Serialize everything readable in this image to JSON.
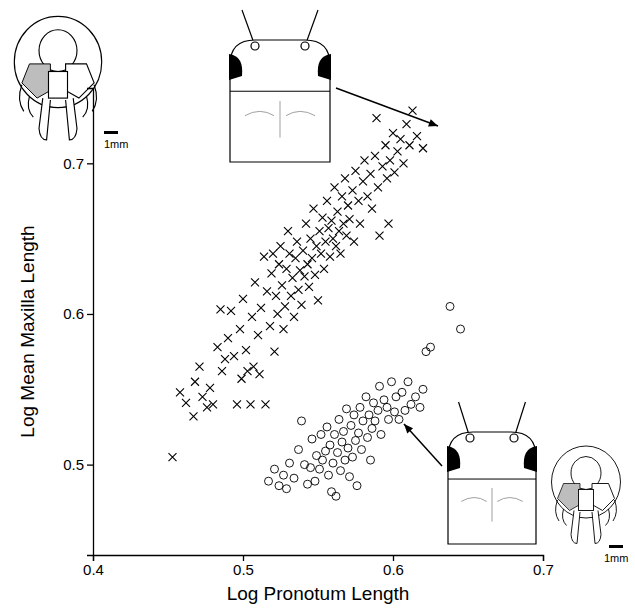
{
  "chart_data": {
    "type": "scatter",
    "xlabel": "Log Pronotum Length",
    "ylabel": "Log Mean Maxilla Length",
    "xlim": [
      0.4,
      0.7
    ],
    "xticks": [
      0.4,
      0.5,
      0.6,
      0.7
    ],
    "ylim": [
      0.44,
      0.75
    ],
    "yticks": [
      0.5,
      0.6,
      0.7
    ],
    "grid": false,
    "annotations": [
      {
        "text": "1mm"
      },
      {
        "text": "1mm"
      }
    ],
    "series": [
      {
        "marker": "x",
        "color": "#000000",
        "x": [
          0.453,
          0.458,
          0.462,
          0.467,
          0.468,
          0.471,
          0.473,
          0.476,
          0.478,
          0.48,
          0.483,
          0.486,
          0.488,
          0.49,
          0.492,
          0.494,
          0.496,
          0.498,
          0.5,
          0.502,
          0.503,
          0.505,
          0.506,
          0.508,
          0.51,
          0.511,
          0.512,
          0.514,
          0.515,
          0.516,
          0.518,
          0.519,
          0.52,
          0.521,
          0.522,
          0.523,
          0.524,
          0.525,
          0.526,
          0.527,
          0.528,
          0.529,
          0.53,
          0.531,
          0.532,
          0.533,
          0.534,
          0.535,
          0.536,
          0.537,
          0.538,
          0.539,
          0.54,
          0.541,
          0.542,
          0.543,
          0.544,
          0.545,
          0.546,
          0.547,
          0.548,
          0.549,
          0.55,
          0.551,
          0.552,
          0.553,
          0.554,
          0.555,
          0.556,
          0.557,
          0.558,
          0.559,
          0.56,
          0.561,
          0.562,
          0.563,
          0.564,
          0.565,
          0.566,
          0.567,
          0.568,
          0.569,
          0.57,
          0.571,
          0.573,
          0.574,
          0.575,
          0.577,
          0.578,
          0.58,
          0.581,
          0.583,
          0.585,
          0.586,
          0.588,
          0.59,
          0.591,
          0.593,
          0.595,
          0.596,
          0.598,
          0.6,
          0.601,
          0.603,
          0.605,
          0.607,
          0.609,
          0.611,
          0.613,
          0.616,
          0.62,
          0.589,
          0.597,
          0.507,
          0.499,
          0.485
        ],
        "values": [
          0.505,
          0.548,
          0.541,
          0.532,
          0.555,
          0.565,
          0.545,
          0.538,
          0.551,
          0.54,
          0.578,
          0.562,
          0.57,
          0.584,
          0.602,
          0.572,
          0.54,
          0.59,
          0.61,
          0.576,
          0.562,
          0.54,
          0.598,
          0.621,
          0.586,
          0.56,
          0.604,
          0.638,
          0.54,
          0.615,
          0.592,
          0.627,
          0.64,
          0.575,
          0.612,
          0.6,
          0.633,
          0.645,
          0.619,
          0.59,
          0.605,
          0.63,
          0.655,
          0.64,
          0.612,
          0.624,
          0.598,
          0.637,
          0.648,
          0.616,
          0.629,
          0.606,
          0.642,
          0.625,
          0.66,
          0.633,
          0.618,
          0.65,
          0.637,
          0.67,
          0.626,
          0.645,
          0.609,
          0.655,
          0.64,
          0.664,
          0.63,
          0.648,
          0.675,
          0.657,
          0.638,
          0.662,
          0.65,
          0.684,
          0.645,
          0.668,
          0.655,
          0.64,
          0.678,
          0.66,
          0.69,
          0.652,
          0.672,
          0.663,
          0.682,
          0.648,
          0.695,
          0.675,
          0.66,
          0.688,
          0.702,
          0.678,
          0.693,
          0.67,
          0.705,
          0.684,
          0.652,
          0.698,
          0.712,
          0.69,
          0.702,
          0.72,
          0.694,
          0.708,
          0.716,
          0.7,
          0.726,
          0.712,
          0.735,
          0.718,
          0.71,
          0.73,
          0.66,
          0.565,
          0.557,
          0.603
        ]
      },
      {
        "marker": "circle",
        "color": "#000000",
        "x": [
          0.517,
          0.521,
          0.524,
          0.527,
          0.529,
          0.531,
          0.534,
          0.537,
          0.539,
          0.541,
          0.543,
          0.545,
          0.546,
          0.548,
          0.549,
          0.551,
          0.552,
          0.553,
          0.555,
          0.556,
          0.557,
          0.558,
          0.559,
          0.56,
          0.561,
          0.562,
          0.563,
          0.564,
          0.565,
          0.566,
          0.567,
          0.568,
          0.569,
          0.57,
          0.571,
          0.572,
          0.573,
          0.574,
          0.575,
          0.577,
          0.578,
          0.579,
          0.58,
          0.582,
          0.583,
          0.584,
          0.586,
          0.587,
          0.588,
          0.59,
          0.591,
          0.592,
          0.594,
          0.596,
          0.597,
          0.599,
          0.601,
          0.602,
          0.604,
          0.606,
          0.608,
          0.61,
          0.612,
          0.615,
          0.618,
          0.62,
          0.622,
          0.625,
          0.638,
          0.645,
          0.576,
          0.585
        ],
        "values": [
          0.489,
          0.497,
          0.486,
          0.493,
          0.484,
          0.501,
          0.491,
          0.51,
          0.529,
          0.5,
          0.487,
          0.498,
          0.517,
          0.489,
          0.506,
          0.497,
          0.52,
          0.503,
          0.509,
          0.525,
          0.493,
          0.513,
          0.482,
          0.501,
          0.52,
          0.479,
          0.508,
          0.53,
          0.496,
          0.515,
          0.522,
          0.503,
          0.537,
          0.511,
          0.492,
          0.526,
          0.505,
          0.533,
          0.516,
          0.521,
          0.538,
          0.51,
          0.529,
          0.545,
          0.518,
          0.533,
          0.524,
          0.541,
          0.529,
          0.536,
          0.552,
          0.52,
          0.543,
          0.538,
          0.53,
          0.555,
          0.535,
          0.545,
          0.53,
          0.548,
          0.536,
          0.555,
          0.54,
          0.545,
          0.538,
          0.55,
          0.575,
          0.578,
          0.605,
          0.59,
          0.486,
          0.503
        ]
      }
    ]
  }
}
